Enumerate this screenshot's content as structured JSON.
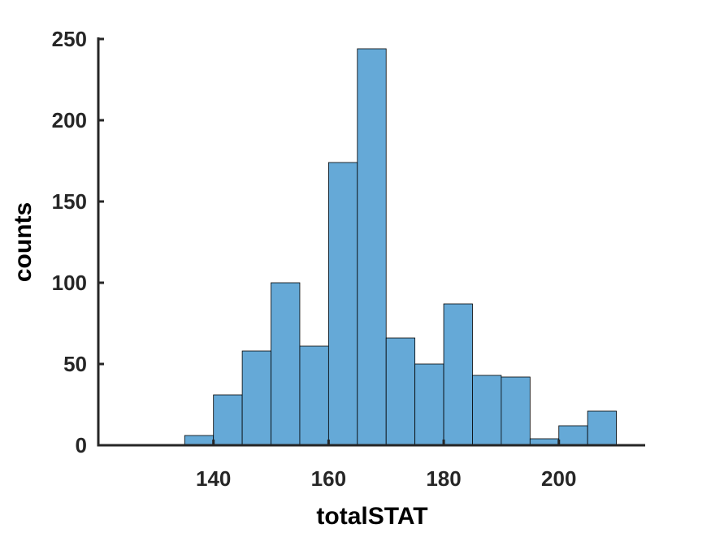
{
  "chart_data": {
    "type": "bar",
    "title": "",
    "xlabel": "totalSTAT",
    "ylabel": "counts",
    "xlim": [
      120,
      215
    ],
    "ylim": [
      0,
      250
    ],
    "xticks": [
      140,
      160,
      180,
      200
    ],
    "yticks": [
      0,
      50,
      100,
      150,
      200,
      250
    ],
    "grid": false,
    "bin_width": 5,
    "bins": [
      {
        "x0": 135,
        "x1": 140,
        "count": 6
      },
      {
        "x0": 140,
        "x1": 145,
        "count": 31
      },
      {
        "x0": 145,
        "x1": 150,
        "count": 58
      },
      {
        "x0": 150,
        "x1": 155,
        "count": 100
      },
      {
        "x0": 155,
        "x1": 160,
        "count": 61
      },
      {
        "x0": 160,
        "x1": 165,
        "count": 174
      },
      {
        "x0": 165,
        "x1": 170,
        "count": 244
      },
      {
        "x0": 170,
        "x1": 175,
        "count": 66
      },
      {
        "x0": 175,
        "x1": 180,
        "count": 50
      },
      {
        "x0": 180,
        "x1": 185,
        "count": 87
      },
      {
        "x0": 185,
        "x1": 190,
        "count": 43
      },
      {
        "x0": 190,
        "x1": 195,
        "count": 42
      },
      {
        "x0": 195,
        "x1": 200,
        "count": 4
      },
      {
        "x0": 200,
        "x1": 205,
        "count": 12
      },
      {
        "x0": 205,
        "x1": 210,
        "count": 21
      }
    ],
    "colors": {
      "bar_fill": "#65a9d7",
      "bar_stroke": "#000000",
      "axis": "#262626"
    }
  }
}
